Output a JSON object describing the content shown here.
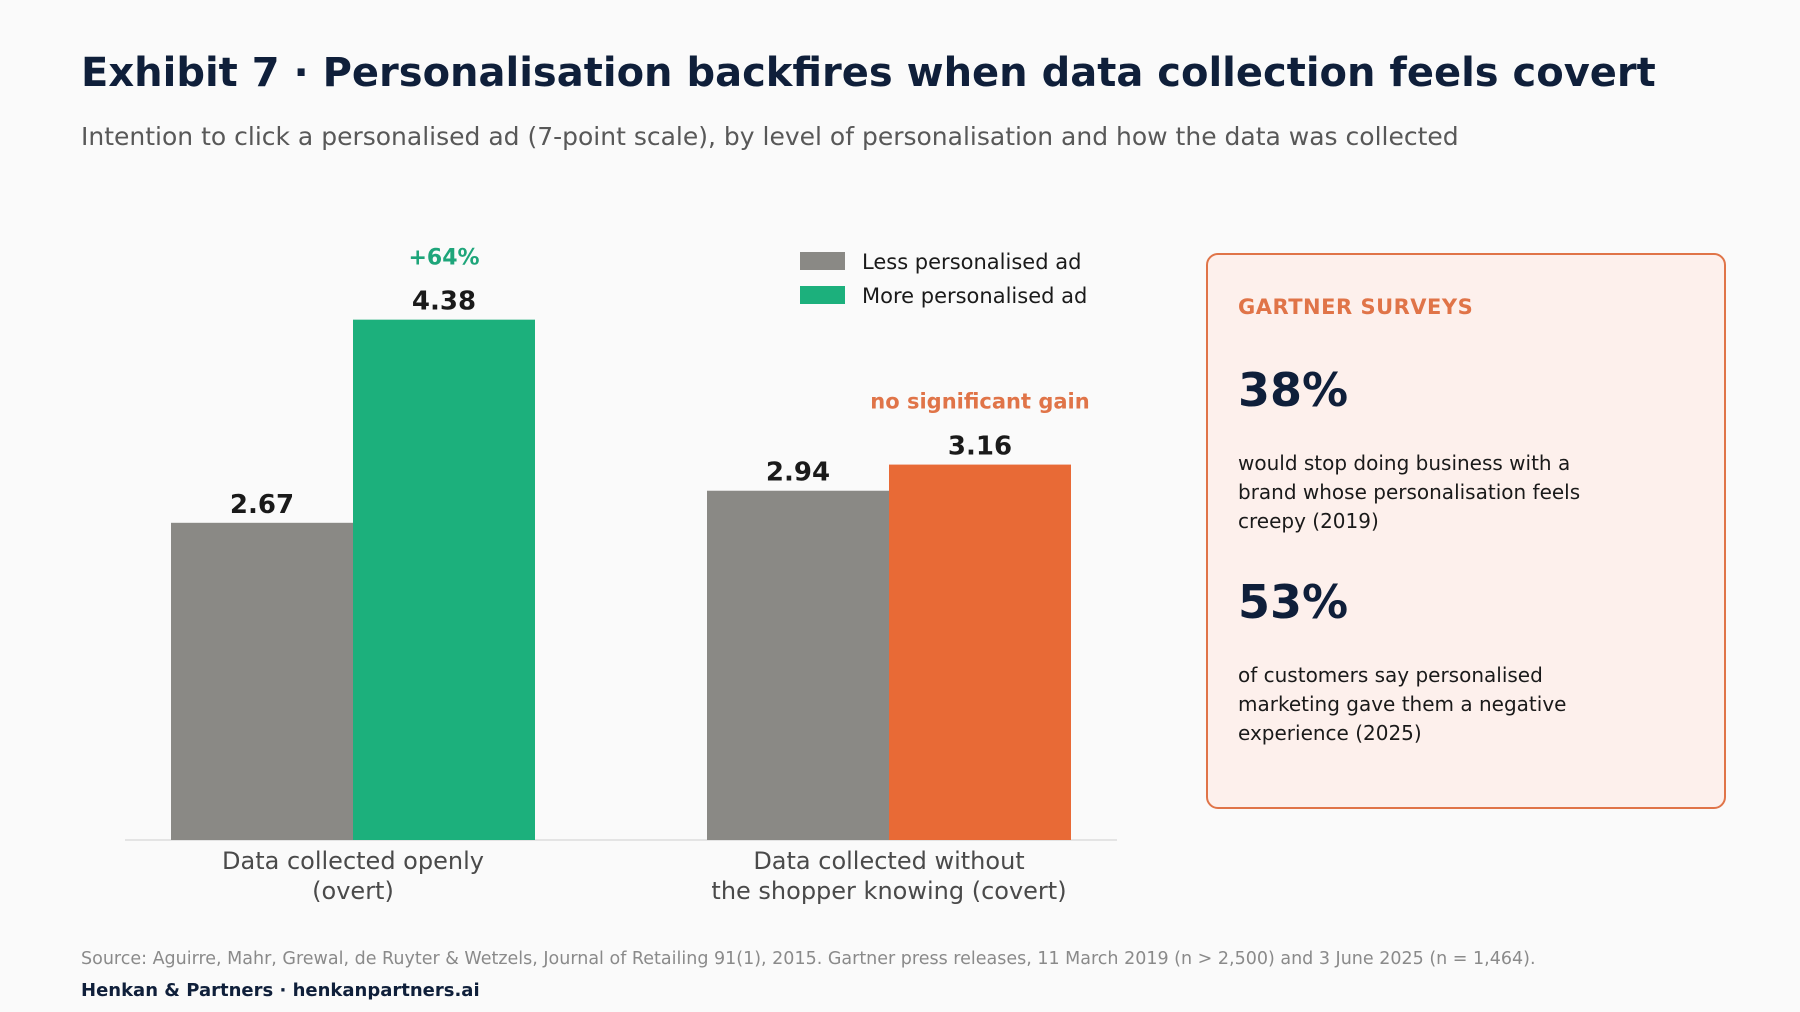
{
  "title": "Exhibit 7 · Personalisation backfires when data collection feels covert",
  "subtitle": "Intention to click a personalised ad (7-point scale), by level of personalisation and how the data was collected",
  "colors": {
    "less": "#8a8985",
    "more_overt": "#1cb07c",
    "more_covert": "#e86a36",
    "accent_green": "#1ea57a",
    "accent_orange": "#e07448"
  },
  "chart_data": {
    "type": "bar",
    "categories": [
      "Data collected openly\n(overt)",
      "Data collected without\nthe shopper knowing (covert)"
    ],
    "series": [
      {
        "name": "Less personalised ad",
        "values": [
          2.67,
          2.94
        ]
      },
      {
        "name": "More personalised ad",
        "values": [
          4.38,
          3.16
        ]
      }
    ],
    "value_labels": [
      [
        "2.67",
        "2.94"
      ],
      [
        "4.38",
        "3.16"
      ]
    ],
    "annotations": [
      "+64%",
      "no significant gain"
    ],
    "ylim": [
      0,
      7
    ],
    "grid": false,
    "legend": "top-right"
  },
  "callout": {
    "heading": "GARTNER SURVEYS",
    "stats": [
      {
        "value": "38%",
        "description": "would stop doing business with a brand whose personalisation feels creepy (2019)"
      },
      {
        "value": "53%",
        "description": "of customers say personalised marketing gave them a negative experience (2025)"
      }
    ]
  },
  "footer": {
    "source": "Source: Aguirre, Mahr, Grewal, de Ruyter & Wetzels, Journal of Retailing 91(1), 2015. Gartner press releases, 11 March 2019 (n > 2,500) and 3 June 2025 (n = 1,464).",
    "credit": "Henkan & Partners · henkanpartners.ai"
  }
}
